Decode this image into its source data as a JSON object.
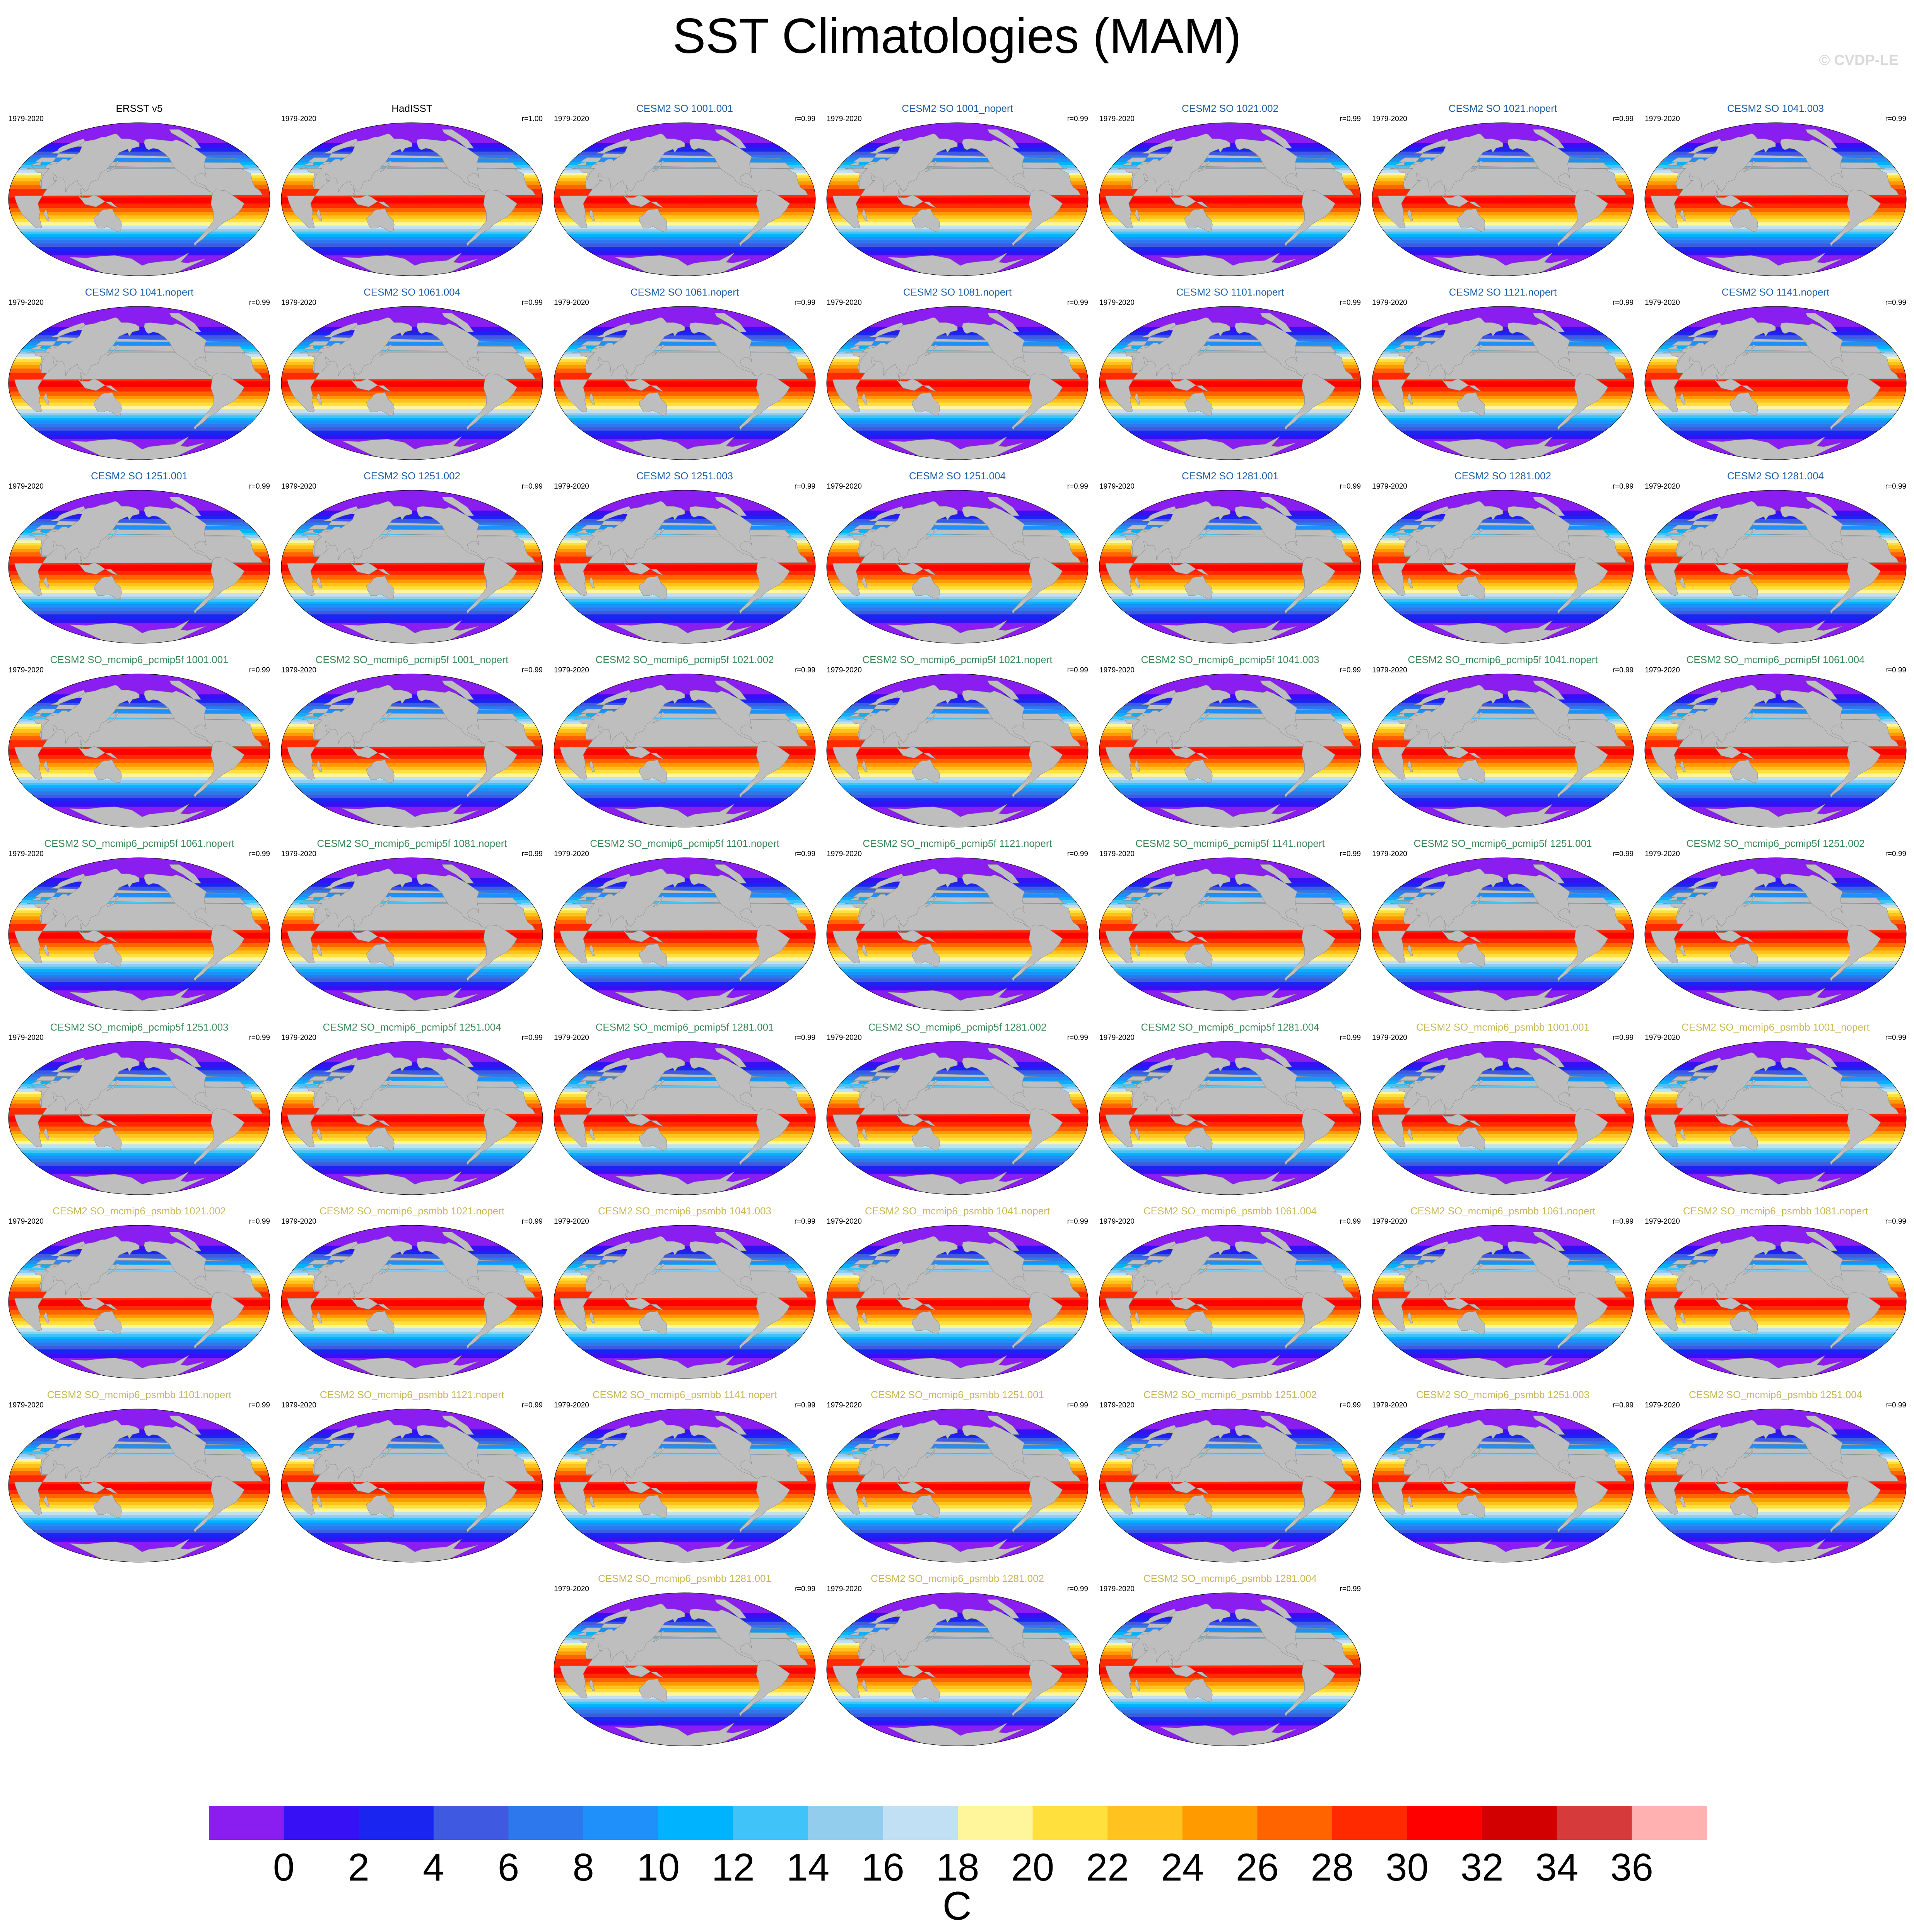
{
  "title": "SST Climatologies (MAM)",
  "watermark": "© CVDP-LE",
  "colors": {
    "title_obs": "#000000",
    "title_group1": "#1f5fa8",
    "title_group2": "#3d8a5a",
    "title_group3": "#c9b85a",
    "land": "#bebebe"
  },
  "chart_data": {
    "type": "heatmap",
    "description_variable": "SST",
    "panels": [
      {
        "title": "ERSST v5",
        "period": "1979-2020",
        "r": "",
        "group": "obs"
      },
      {
        "title": "HadISST",
        "period": "1979-2020",
        "r": "r=1.00",
        "group": "obs"
      },
      {
        "title": "CESM2 SO 1001.001",
        "period": "1979-2020",
        "r": "r=0.99",
        "group": "group1"
      },
      {
        "title": "CESM2 SO 1001_nopert",
        "period": "1979-2020",
        "r": "r=0.99",
        "group": "group1"
      },
      {
        "title": "CESM2 SO 1021.002",
        "period": "1979-2020",
        "r": "r=0.99",
        "group": "group1"
      },
      {
        "title": "CESM2 SO 1021.nopert",
        "period": "1979-2020",
        "r": "r=0.99",
        "group": "group1"
      },
      {
        "title": "CESM2 SO 1041.003",
        "period": "1979-2020",
        "r": "r=0.99",
        "group": "group1"
      },
      {
        "title": "CESM2 SO 1041.nopert",
        "period": "1979-2020",
        "r": "r=0.99",
        "group": "group1"
      },
      {
        "title": "CESM2 SO 1061.004",
        "period": "1979-2020",
        "r": "r=0.99",
        "group": "group1"
      },
      {
        "title": "CESM2 SO 1061.nopert",
        "period": "1979-2020",
        "r": "r=0.99",
        "group": "group1"
      },
      {
        "title": "CESM2 SO 1081.nopert",
        "period": "1979-2020",
        "r": "r=0.99",
        "group": "group1"
      },
      {
        "title": "CESM2 SO 1101.nopert",
        "period": "1979-2020",
        "r": "r=0.99",
        "group": "group1"
      },
      {
        "title": "CESM2 SO 1121.nopert",
        "period": "1979-2020",
        "r": "r=0.99",
        "group": "group1"
      },
      {
        "title": "CESM2 SO 1141.nopert",
        "period": "1979-2020",
        "r": "r=0.99",
        "group": "group1"
      },
      {
        "title": "CESM2 SO 1251.001",
        "period": "1979-2020",
        "r": "r=0.99",
        "group": "group1"
      },
      {
        "title": "CESM2 SO 1251.002",
        "period": "1979-2020",
        "r": "r=0.99",
        "group": "group1"
      },
      {
        "title": "CESM2 SO 1251.003",
        "period": "1979-2020",
        "r": "r=0.99",
        "group": "group1"
      },
      {
        "title": "CESM2 SO 1251.004",
        "period": "1979-2020",
        "r": "r=0.99",
        "group": "group1"
      },
      {
        "title": "CESM2 SO 1281.001",
        "period": "1979-2020",
        "r": "r=0.99",
        "group": "group1"
      },
      {
        "title": "CESM2 SO 1281.002",
        "period": "1979-2020",
        "r": "r=0.99",
        "group": "group1"
      },
      {
        "title": "CESM2 SO 1281.004",
        "period": "1979-2020",
        "r": "r=0.99",
        "group": "group1"
      },
      {
        "title": "CESM2 SO_mcmip6_pcmip5f 1001.001",
        "period": "1979-2020",
        "r": "r=0.99",
        "group": "group2"
      },
      {
        "title": "CESM2 SO_mcmip6_pcmip5f 1001_nopert",
        "period": "1979-2020",
        "r": "r=0.99",
        "group": "group2"
      },
      {
        "title": "CESM2 SO_mcmip6_pcmip5f 1021.002",
        "period": "1979-2020",
        "r": "r=0.99",
        "group": "group2"
      },
      {
        "title": "CESM2 SO_mcmip6_pcmip5f 1021.nopert",
        "period": "1979-2020",
        "r": "r=0.99",
        "group": "group2"
      },
      {
        "title": "CESM2 SO_mcmip6_pcmip5f 1041.003",
        "period": "1979-2020",
        "r": "r=0.99",
        "group": "group2"
      },
      {
        "title": "CESM2 SO_mcmip6_pcmip5f 1041.nopert",
        "period": "1979-2020",
        "r": "r=0.99",
        "group": "group2"
      },
      {
        "title": "CESM2 SO_mcmip6_pcmip5f 1061.004",
        "period": "1979-2020",
        "r": "r=0.99",
        "group": "group2"
      },
      {
        "title": "CESM2 SO_mcmip6_pcmip5f 1061.nopert",
        "period": "1979-2020",
        "r": "r=0.99",
        "group": "group2"
      },
      {
        "title": "CESM2 SO_mcmip6_pcmip5f 1081.nopert",
        "period": "1979-2020",
        "r": "r=0.99",
        "group": "group2"
      },
      {
        "title": "CESM2 SO_mcmip6_pcmip5f 1101.nopert",
        "period": "1979-2020",
        "r": "r=0.99",
        "group": "group2"
      },
      {
        "title": "CESM2 SO_mcmip6_pcmip5f 1121.nopert",
        "period": "1979-2020",
        "r": "r=0.99",
        "group": "group2"
      },
      {
        "title": "CESM2 SO_mcmip6_pcmip5f 1141.nopert",
        "period": "1979-2020",
        "r": "r=0.99",
        "group": "group2"
      },
      {
        "title": "CESM2 SO_mcmip6_pcmip5f 1251.001",
        "period": "1979-2020",
        "r": "r=0.99",
        "group": "group2"
      },
      {
        "title": "CESM2 SO_mcmip6_pcmip5f 1251.002",
        "period": "1979-2020",
        "r": "r=0.99",
        "group": "group2"
      },
      {
        "title": "CESM2 SO_mcmip6_pcmip5f 1251.003",
        "period": "1979-2020",
        "r": "r=0.99",
        "group": "group2"
      },
      {
        "title": "CESM2 SO_mcmip6_pcmip5f 1251.004",
        "period": "1979-2020",
        "r": "r=0.99",
        "group": "group2"
      },
      {
        "title": "CESM2 SO_mcmip6_pcmip5f 1281.001",
        "period": "1979-2020",
        "r": "r=0.99",
        "group": "group2"
      },
      {
        "title": "CESM2 SO_mcmip6_pcmip5f 1281.002",
        "period": "1979-2020",
        "r": "r=0.99",
        "group": "group2"
      },
      {
        "title": "CESM2 SO_mcmip6_pcmip5f 1281.004",
        "period": "1979-2020",
        "r": "r=0.99",
        "group": "group2"
      },
      {
        "title": "CESM2 SO_mcmip6_psmbb 1001.001",
        "period": "1979-2020",
        "r": "r=0.99",
        "group": "group3"
      },
      {
        "title": "CESM2 SO_mcmip6_psmbb 1001_nopert",
        "period": "1979-2020",
        "r": "r=0.99",
        "group": "group3"
      },
      {
        "title": "CESM2 SO_mcmip6_psmbb 1021.002",
        "period": "1979-2020",
        "r": "r=0.99",
        "group": "group3"
      },
      {
        "title": "CESM2 SO_mcmip6_psmbb 1021.nopert",
        "period": "1979-2020",
        "r": "r=0.99",
        "group": "group3"
      },
      {
        "title": "CESM2 SO_mcmip6_psmbb 1041.003",
        "period": "1979-2020",
        "r": "r=0.99",
        "group": "group3"
      },
      {
        "title": "CESM2 SO_mcmip6_psmbb 1041.nopert",
        "period": "1979-2020",
        "r": "r=0.99",
        "group": "group3"
      },
      {
        "title": "CESM2 SO_mcmip6_psmbb 1061.004",
        "period": "1979-2020",
        "r": "r=0.99",
        "group": "group3"
      },
      {
        "title": "CESM2 SO_mcmip6_psmbb 1061.nopert",
        "period": "1979-2020",
        "r": "r=0.99",
        "group": "group3"
      },
      {
        "title": "CESM2 SO_mcmip6_psmbb 1081.nopert",
        "period": "1979-2020",
        "r": "r=0.99",
        "group": "group3"
      },
      {
        "title": "CESM2 SO_mcmip6_psmbb 1101.nopert",
        "period": "1979-2020",
        "r": "r=0.99",
        "group": "group3"
      },
      {
        "title": "CESM2 SO_mcmip6_psmbb 1121.nopert",
        "period": "1979-2020",
        "r": "r=0.99",
        "group": "group3"
      },
      {
        "title": "CESM2 SO_mcmip6_psmbb 1141.nopert",
        "period": "1979-2020",
        "r": "r=0.99",
        "group": "group3"
      },
      {
        "title": "CESM2 SO_mcmip6_psmbb 1251.001",
        "period": "1979-2020",
        "r": "r=0.99",
        "group": "group3"
      },
      {
        "title": "CESM2 SO_mcmip6_psmbb 1251.002",
        "period": "1979-2020",
        "r": "r=0.99",
        "group": "group3"
      },
      {
        "title": "CESM2 SO_mcmip6_psmbb 1251.003",
        "period": "1979-2020",
        "r": "r=0.99",
        "group": "group3"
      },
      {
        "title": "CESM2 SO_mcmip6_psmbb 1251.004",
        "period": "1979-2020",
        "r": "r=0.99",
        "group": "group3"
      },
      {
        "title": "CESM2 SO_mcmip6_psmbb 1281.001",
        "period": "1979-2020",
        "r": "r=0.99",
        "group": "group3"
      },
      {
        "title": "CESM2 SO_mcmip6_psmbb 1281.002",
        "period": "1979-2020",
        "r": "r=0.99",
        "group": "group3"
      },
      {
        "title": "CESM2 SO_mcmip6_psmbb 1281.004",
        "period": "1979-2020",
        "r": "r=0.99",
        "group": "group3"
      }
    ],
    "colorbar": {
      "unit": "C",
      "levels": [
        0,
        2,
        4,
        6,
        8,
        10,
        12,
        14,
        16,
        18,
        20,
        22,
        24,
        26,
        28,
        30,
        32,
        34,
        36
      ],
      "colors": [
        "#8a1df0",
        "#3710f5",
        "#1b25f0",
        "#3f5ae0",
        "#2d78ec",
        "#1f90fa",
        "#00b3ff",
        "#3fc3f8",
        "#93cdee",
        "#c1e0f4",
        "#fff59a",
        "#ffe03c",
        "#ffc21e",
        "#ff9b00",
        "#ff6400",
        "#ff2a00",
        "#ff0000",
        "#d20000",
        "#d73a3a",
        "#ffb0b0"
      ]
    }
  }
}
